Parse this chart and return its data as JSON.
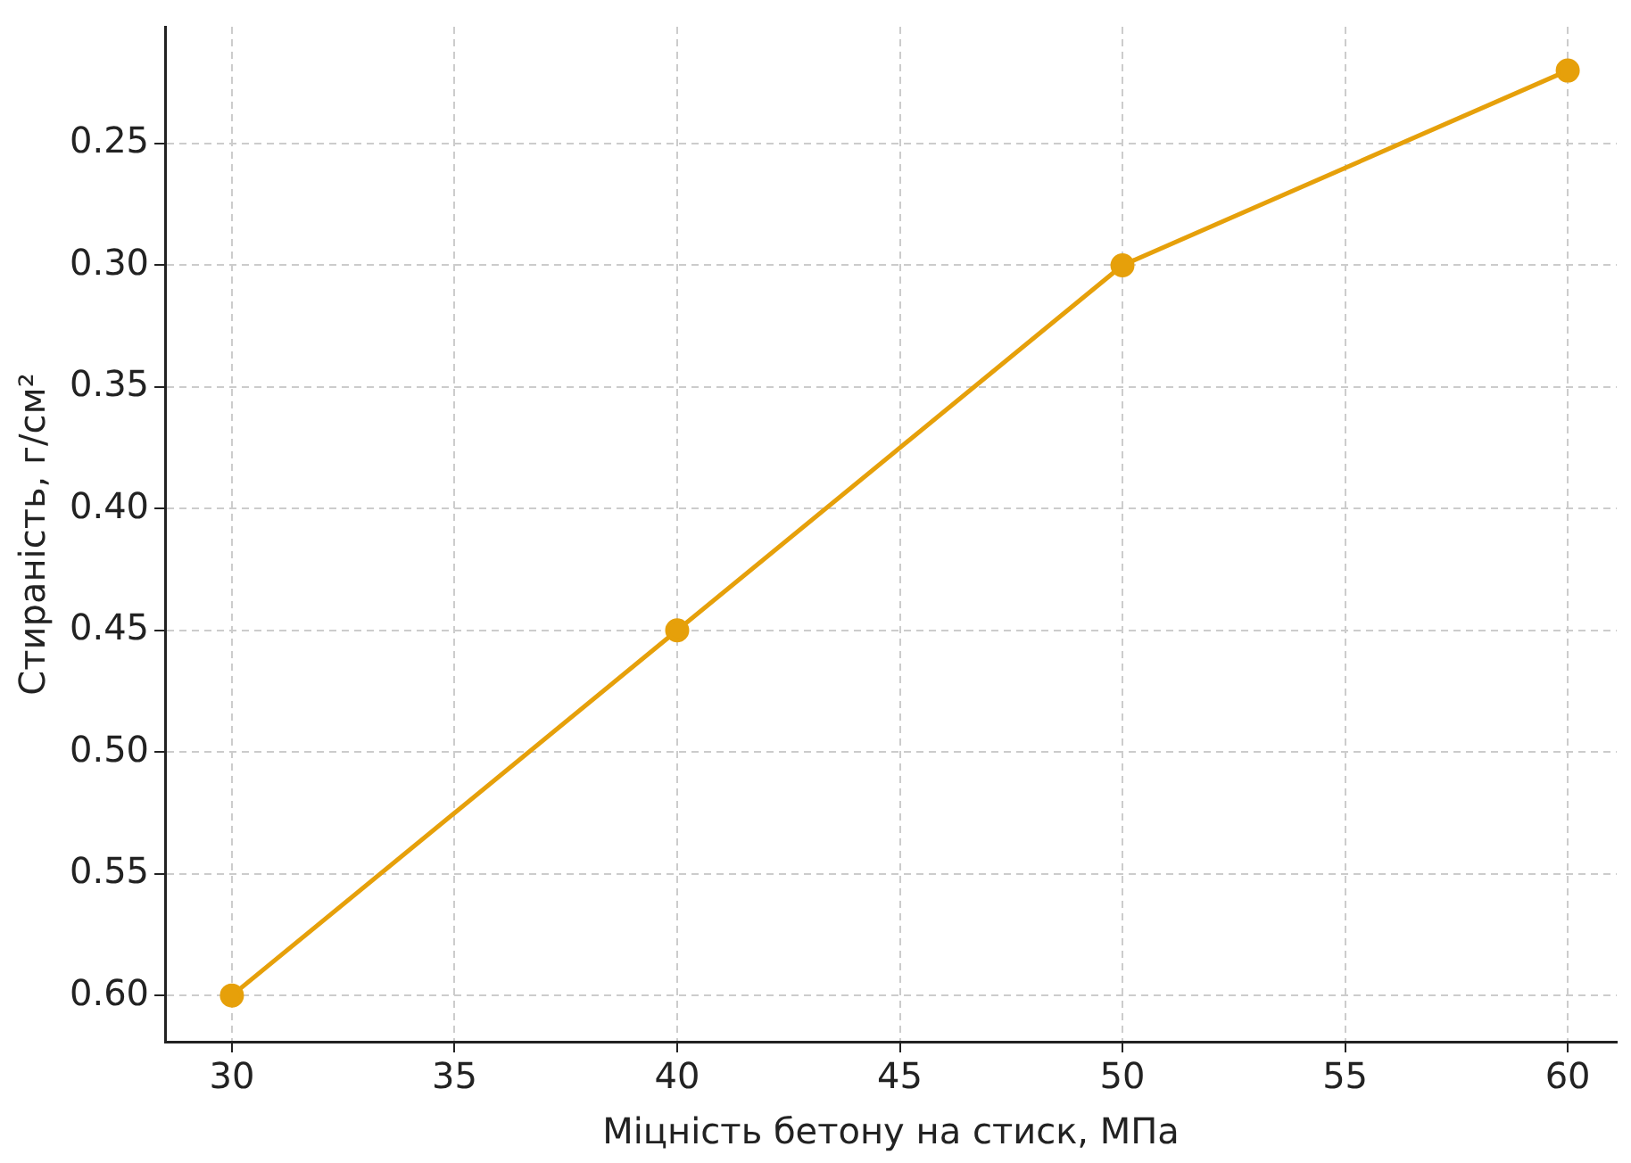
{
  "chart_data": {
    "type": "line",
    "xlabel": "Міцність бетону на стиск, МПа",
    "ylabel": "Стираність, г/см²",
    "x": [
      30,
      40,
      50,
      60
    ],
    "series": [
      {
        "color": "#e6a00a",
        "values": [
          0.6,
          0.45,
          0.3,
          0.22
        ]
      }
    ],
    "xlim": [
      28.5,
      61.1
    ],
    "xticks": [
      30,
      35,
      40,
      45,
      50,
      55,
      60
    ],
    "ylim": [
      0.619,
      0.202
    ],
    "yticks": [
      {
        "value": 0.25,
        "label": "0.25"
      },
      {
        "value": 0.3,
        "label": "0.30"
      },
      {
        "value": 0.35,
        "label": "0.35"
      },
      {
        "value": 0.4,
        "label": "0.40"
      },
      {
        "value": 0.45,
        "label": "0.45"
      },
      {
        "value": 0.5,
        "label": "0.50"
      },
      {
        "value": 0.55,
        "label": "0.55"
      },
      {
        "value": 0.6,
        "label": "0.60"
      }
    ],
    "grid": true,
    "legend": false,
    "marker": "circle",
    "line_style": "solid"
  }
}
